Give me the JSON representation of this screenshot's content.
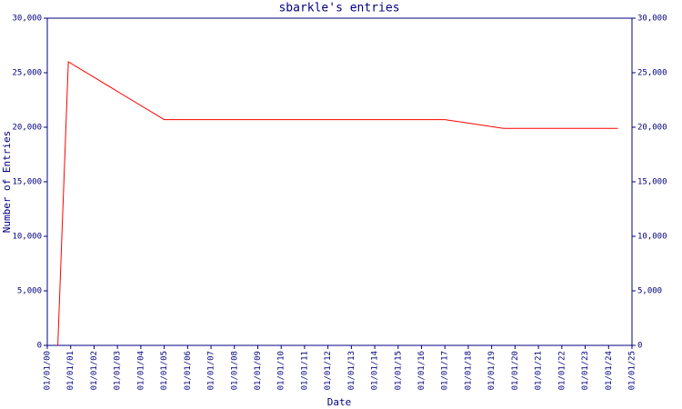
{
  "chart_data": {
    "type": "line",
    "title": "sbarkle's entries",
    "x_label": "Date",
    "y_label": "Number of Entries",
    "x": [
      0.45,
      0.9,
      5.0,
      17.0,
      19.5,
      24.4
    ],
    "series": [
      {
        "name": "entries",
        "color": "#ff0000",
        "values": [
          0,
          26000,
          20700,
          20700,
          19900,
          19900
        ]
      }
    ],
    "xlim": [
      0,
      25
    ],
    "xticks": [
      {
        "value": 0,
        "label": "01/01/00"
      },
      {
        "value": 1,
        "label": "01/01/01"
      },
      {
        "value": 2,
        "label": "01/01/02"
      },
      {
        "value": 3,
        "label": "01/01/03"
      },
      {
        "value": 4,
        "label": "01/01/04"
      },
      {
        "value": 5,
        "label": "01/01/05"
      },
      {
        "value": 6,
        "label": "01/01/06"
      },
      {
        "value": 7,
        "label": "01/01/07"
      },
      {
        "value": 8,
        "label": "01/01/08"
      },
      {
        "value": 9,
        "label": "01/01/09"
      },
      {
        "value": 10,
        "label": "01/01/10"
      },
      {
        "value": 11,
        "label": "01/01/11"
      },
      {
        "value": 12,
        "label": "01/01/12"
      },
      {
        "value": 13,
        "label": "01/01/13"
      },
      {
        "value": 14,
        "label": "01/01/14"
      },
      {
        "value": 15,
        "label": "01/01/15"
      },
      {
        "value": 16,
        "label": "01/01/16"
      },
      {
        "value": 17,
        "label": "01/01/17"
      },
      {
        "value": 18,
        "label": "01/01/18"
      },
      {
        "value": 19,
        "label": "01/01/19"
      },
      {
        "value": 20,
        "label": "01/01/20"
      },
      {
        "value": 21,
        "label": "01/01/21"
      },
      {
        "value": 22,
        "label": "01/01/22"
      },
      {
        "value": 23,
        "label": "01/01/23"
      },
      {
        "value": 24,
        "label": "01/01/24"
      },
      {
        "value": 25,
        "label": "01/01/25"
      }
    ],
    "ylim": [
      0,
      30000
    ],
    "yticks": [
      0,
      {
        "value": 5000,
        "label": "5,000"
      },
      {
        "value": 10000,
        "label": "10,000"
      },
      {
        "value": 15000,
        "label": "15,000"
      },
      {
        "value": 20000,
        "label": "20,000"
      },
      {
        "value": 25000,
        "label": "25,000"
      },
      {
        "value": 30000,
        "label": "30,000"
      }
    ],
    "y2lim": [
      0,
      30000
    ],
    "y2ticks": [
      0,
      {
        "value": 5000,
        "label": "5,000"
      },
      {
        "value": 10000,
        "label": "10,000"
      },
      {
        "value": 15000,
        "label": "15,000"
      },
      {
        "value": 20000,
        "label": "20,000"
      },
      {
        "value": 25000,
        "label": "25,000"
      },
      {
        "value": 30000,
        "label": "30,000"
      }
    ],
    "grid": false
  }
}
